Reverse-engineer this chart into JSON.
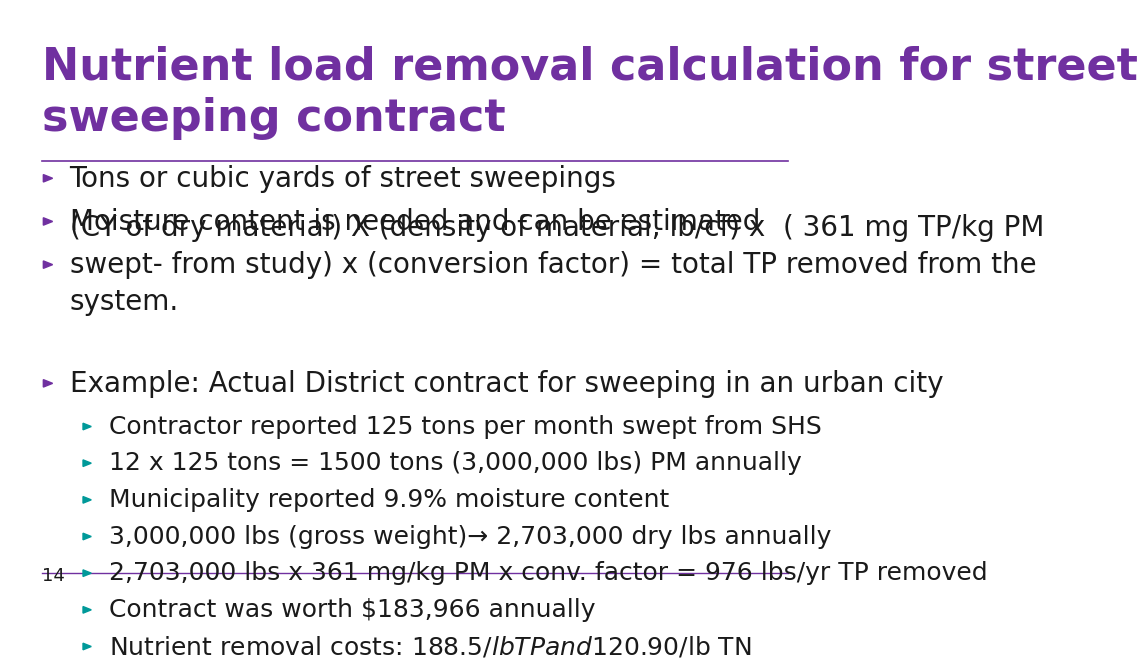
{
  "title": "Nutrient load removal calculation for street\nsweeping contract",
  "title_color": "#7030A0",
  "title_fontsize": 32,
  "separator_color": "#7030A0",
  "bullet_color_main": "#7030A0",
  "bullet_color_sub": "#009999",
  "text_color": "#1a1a1a",
  "background_color": "#ffffff",
  "page_number": "14",
  "main_bullet_fontsize": 20,
  "sub_bullet_fontsize": 18,
  "bullets": [
    {
      "level": 0,
      "text": "Tons or cubic yards of street sweepings"
    },
    {
      "level": 0,
      "text": "Moisture content is needed and can be estimated"
    },
    {
      "level": 0,
      "text": "(CY of dry material) X (density of material, lb/cf) x  ( 361 mg TP/kg PM\nswept- from study) x (conversion factor) = total TP removed from the\nsystem."
    },
    {
      "level": 0,
      "text": "Example: Actual District contract for sweeping in an urban city"
    },
    {
      "level": 1,
      "text": "Contractor reported 125 tons per month swept from SHS"
    },
    {
      "level": 1,
      "text": "12 x 125 tons = 1500 tons (3,000,000 lbs) PM annually"
    },
    {
      "level": 1,
      "text": "Municipality reported 9.9% moisture content"
    },
    {
      "level": 1,
      "text": "3,000,000 lbs (gross weight)→ 2,703,000 dry lbs annually"
    },
    {
      "level": 1,
      "text": "2,703,000 lbs x 361 mg/kg PM x conv. factor = 976 lbs/yr TP removed"
    },
    {
      "level": 1,
      "text": "Contract was worth $183,966 annually"
    },
    {
      "level": 1,
      "text": "Nutrient removal costs: $188.5/lb TP and $120.90/lb TN"
    }
  ]
}
